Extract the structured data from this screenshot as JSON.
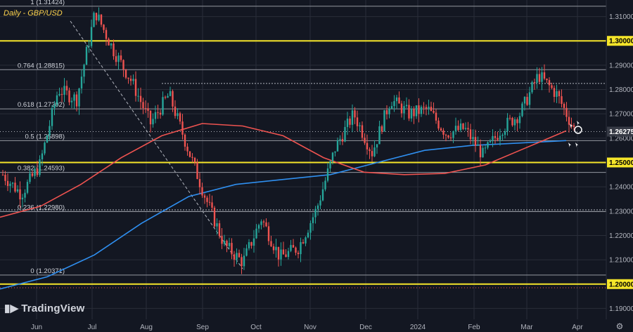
{
  "chart_data": {
    "type": "candlestick",
    "title": "Daily - GBP/USD",
    "current_price": "1.26275",
    "ylim": [
      1.1855,
      1.3168
    ],
    "yticks": [
      "1.31000",
      "1.30000",
      "1.29000",
      "1.28000",
      "1.27000",
      "1.26000",
      "1.25000",
      "1.24000",
      "1.23000",
      "1.22000",
      "1.21000",
      "1.20000",
      "1.19000"
    ],
    "ytick_values": [
      1.31,
      1.3,
      1.29,
      1.28,
      1.27,
      1.26,
      1.25,
      1.24,
      1.23,
      1.22,
      1.21,
      1.2,
      1.19
    ],
    "highlighted_yticks": [
      "1.30000",
      "1.25000",
      "1.20000"
    ],
    "xticks": [
      "Jun",
      "Jul",
      "Aug",
      "Sep",
      "Oct",
      "Nov",
      "Dec",
      "2024",
      "Feb",
      "Mar",
      "Apr"
    ],
    "fib_levels": [
      {
        "label": "1 (1.31424)",
        "value": 1.31424
      },
      {
        "label": "0.764 (1.28815)",
        "value": 1.28815
      },
      {
        "label": "0.618 (1.27202)",
        "value": 1.27202
      },
      {
        "label": "0.5 (1.25898)",
        "value": 1.25898
      },
      {
        "label": "0.382 (1.24593)",
        "value": 1.24593
      },
      {
        "label": "0.236 (1.22980)",
        "value": 1.2298
      },
      {
        "label": "0 (1.20371)",
        "value": 1.20371
      }
    ],
    "key_levels": [
      1.3,
      1.25,
      1.2
    ],
    "resistance_dotted": [
      1.2825,
      1.2305
    ],
    "red_ma": [
      1.2275,
      1.232,
      1.241,
      1.252,
      1.261,
      1.266,
      1.265,
      1.261,
      1.252,
      1.246,
      1.245,
      1.2455,
      1.249,
      1.256,
      1.263
    ],
    "blue_ma": [
      1.198,
      1.203,
      1.212,
      1.225,
      1.236,
      1.241,
      1.243,
      1.245,
      1.25,
      1.255,
      1.257,
      1.258,
      1.259
    ],
    "price_path": [
      1.245,
      1.237,
      1.249,
      1.28,
      1.276,
      1.312,
      1.296,
      1.283,
      1.266,
      1.278,
      1.256,
      1.235,
      1.216,
      1.209,
      1.227,
      1.211,
      1.215,
      1.231,
      1.256,
      1.27,
      1.254,
      1.276,
      1.27,
      1.272,
      1.262,
      1.264,
      1.253,
      1.264,
      1.27,
      1.286,
      1.278,
      1.2627
    ]
  },
  "colors": {
    "background": "#131722",
    "grid": "#2a2e39",
    "bull": "#26a69a",
    "bear": "#ef5350",
    "key_level": "#f5e52a",
    "red_ma": "#ef5350",
    "blue_ma": "#2f8ff0",
    "fib_line": "#b2b5be"
  },
  "branding": {
    "logo_text": "TradingView",
    "logo_icon": "tradingview-logo-icon"
  }
}
